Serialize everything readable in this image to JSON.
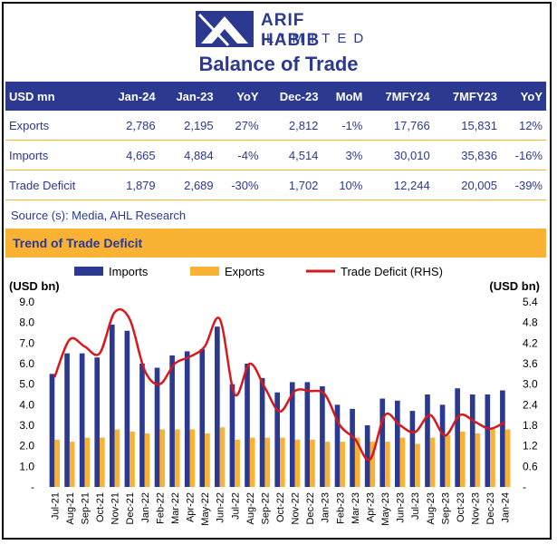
{
  "header": {
    "company_name": "ARIF HABIB",
    "company_sub": "LIMITED",
    "title": "Balance of Trade"
  },
  "table": {
    "columns": [
      "USD mn",
      "Jan-24",
      "Jan-23",
      "YoY",
      "Dec-23",
      "MoM",
      "7MFY24",
      "7MFY23",
      "YoY"
    ],
    "rows": [
      [
        "Exports",
        "2,786",
        "2,195",
        "27%",
        "2,812",
        "-1%",
        "17,766",
        "15,831",
        "12%"
      ],
      [
        "Imports",
        "4,665",
        "4,884",
        "-4%",
        "4,514",
        "3%",
        "30,010",
        "35,836",
        "-16%"
      ],
      [
        "Trade Deficit",
        "1,879",
        "2,689",
        "-30%",
        "1,702",
        "10%",
        "12,244",
        "20,005",
        "-39%"
      ]
    ]
  },
  "source": "Source (s): Media, AHL Research",
  "section_title": "Trend of Trade Deficit",
  "colors": {
    "imports": "#2b3990",
    "exports": "#f9b233",
    "deficit": "#d7191c",
    "header_bg": "#2b3990",
    "accent": "#f9b233"
  },
  "chart_data": {
    "type": "bar",
    "categories": [
      "Jul-21",
      "Aug-21",
      "Sep-21",
      "Oct-21",
      "Nov-21",
      "Dec-21",
      "Jan-22",
      "Feb-22",
      "Mar-22",
      "Apr-22",
      "May-22",
      "Jun-22",
      "Jul-22",
      "Aug-22",
      "Sep-22",
      "Oct-22",
      "Nov-22",
      "Dec-22",
      "Jan-23",
      "Feb-23",
      "Mar-23",
      "Apr-23",
      "May-23",
      "Jun-23",
      "Jul-23",
      "Aug-23",
      "Sep-23",
      "Oct-23",
      "Nov-23",
      "Dec-23",
      "Jan-24"
    ],
    "series": [
      {
        "name": "Imports",
        "type": "bar",
        "axis": "left",
        "values": [
          5.5,
          6.5,
          6.5,
          6.3,
          7.9,
          7.6,
          6.0,
          5.8,
          6.4,
          6.6,
          6.7,
          7.8,
          5.0,
          6.0,
          5.3,
          4.6,
          5.1,
          5.1,
          4.9,
          4.0,
          3.8,
          3.0,
          4.3,
          4.2,
          3.7,
          4.5,
          4.0,
          4.8,
          4.5,
          4.5,
          4.7
        ]
      },
      {
        "name": "Exports",
        "type": "bar",
        "axis": "left",
        "values": [
          2.3,
          2.2,
          2.4,
          2.4,
          2.8,
          2.7,
          2.6,
          2.8,
          2.8,
          2.8,
          2.6,
          2.9,
          2.3,
          2.4,
          2.4,
          2.4,
          2.3,
          2.3,
          2.2,
          2.2,
          2.4,
          2.2,
          2.2,
          2.4,
          2.1,
          2.4,
          2.5,
          2.7,
          2.6,
          2.8,
          2.8
        ]
      },
      {
        "name": "Trade Deficit (RHS)",
        "type": "line",
        "axis": "right",
        "values": [
          3.2,
          4.3,
          4.1,
          3.9,
          5.1,
          4.9,
          3.4,
          3.0,
          3.6,
          3.8,
          4.1,
          4.9,
          2.7,
          3.6,
          2.9,
          2.2,
          2.8,
          2.8,
          2.7,
          1.8,
          1.4,
          0.8,
          2.1,
          1.8,
          1.6,
          2.1,
          1.5,
          2.1,
          1.9,
          1.7,
          1.9
        ]
      }
    ],
    "ylabel": "(USD bn)",
    "y2label": "(USD bn)",
    "yticks": [
      "-",
      "1.0",
      "2.0",
      "3.0",
      "4.0",
      "5.0",
      "6.0",
      "7.0",
      "8.0",
      "9.0"
    ],
    "y2ticks": [
      "-",
      "0.6",
      "1.2",
      "1.8",
      "2.4",
      "3.0",
      "3.6",
      "4.2",
      "4.8",
      "5.4"
    ],
    "ylim": [
      0,
      9
    ],
    "y2lim": [
      0,
      5.4
    ],
    "legend_position": "top"
  }
}
